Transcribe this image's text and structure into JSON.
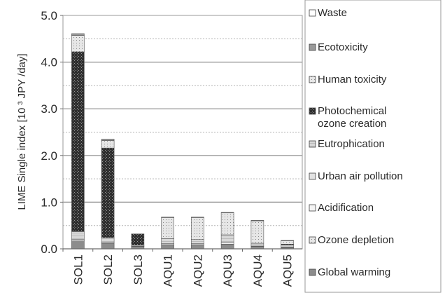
{
  "chart_data": {
    "type": "bar",
    "stacked": true,
    "ylabel": "LIME Single index [10 ³ JPY /day]",
    "ylim": [
      0,
      5
    ],
    "yticks": [
      "0.0",
      "1.0",
      "2.0",
      "3.0",
      "4.0",
      "5.0"
    ],
    "grid": true,
    "legend_position": "right",
    "categories": [
      "SOL1",
      "SOL2",
      "SOL3",
      "AQU1",
      "AQU2",
      "AQU3",
      "AQU4",
      "AQU5"
    ],
    "series": [
      {
        "name": "Global warming",
        "color": "#8c8c8c",
        "pattern": "solid",
        "values": [
          0.17,
          0.12,
          0.05,
          0.09,
          0.09,
          0.1,
          0.05,
          0.03
        ]
      },
      {
        "name": "Ozone depletion",
        "color": "#d4d4d4",
        "pattern": "dots",
        "values": [
          0.0,
          0.0,
          0.0,
          0.0,
          0.0,
          0.0,
          0.0,
          0.0
        ]
      },
      {
        "name": "Acidification",
        "color": "#f4f4f4",
        "pattern": "solid",
        "values": [
          0.03,
          0.02,
          0.01,
          0.02,
          0.02,
          0.03,
          0.01,
          0.01
        ]
      },
      {
        "name": "Urban air pollution",
        "color": "#e2e2e2",
        "pattern": "solid",
        "values": [
          0.0,
          0.0,
          0.0,
          0.0,
          0.0,
          0.0,
          0.0,
          0.0
        ]
      },
      {
        "name": "Eutrophication",
        "color": "#cfcfcf",
        "pattern": "hatch",
        "values": [
          0.17,
          0.1,
          0.02,
          0.11,
          0.09,
          0.17,
          0.06,
          0.04
        ]
      },
      {
        "name": "Photochemical ozone creation",
        "color": "#3a3a3a",
        "pattern": "dense-dots",
        "values": [
          3.85,
          1.92,
          0.24,
          0.0,
          0.0,
          0.0,
          0.0,
          0.02
        ]
      },
      {
        "name": "Human toxicity",
        "color": "#e0e0e0",
        "pattern": "dots",
        "values": [
          0.35,
          0.16,
          0.0,
          0.45,
          0.47,
          0.47,
          0.48,
          0.07
        ]
      },
      {
        "name": "Ecotoxicity",
        "color": "#9a9a9a",
        "pattern": "solid",
        "values": [
          0.04,
          0.03,
          0.0,
          0.01,
          0.01,
          0.01,
          0.01,
          0.01
        ]
      },
      {
        "name": "Waste",
        "color": "#ffffff",
        "pattern": "solid",
        "values": [
          0.0,
          0.0,
          0.0,
          0.0,
          0.0,
          0.0,
          0.0,
          0.0
        ]
      }
    ],
    "legend_order": [
      "Waste",
      "Ecotoxicity",
      "Human toxicity",
      "Photochemical ozone creation",
      "Eutrophication",
      "Urban air pollution",
      "Acidification",
      "Ozone depletion",
      "Global warming"
    ]
  }
}
